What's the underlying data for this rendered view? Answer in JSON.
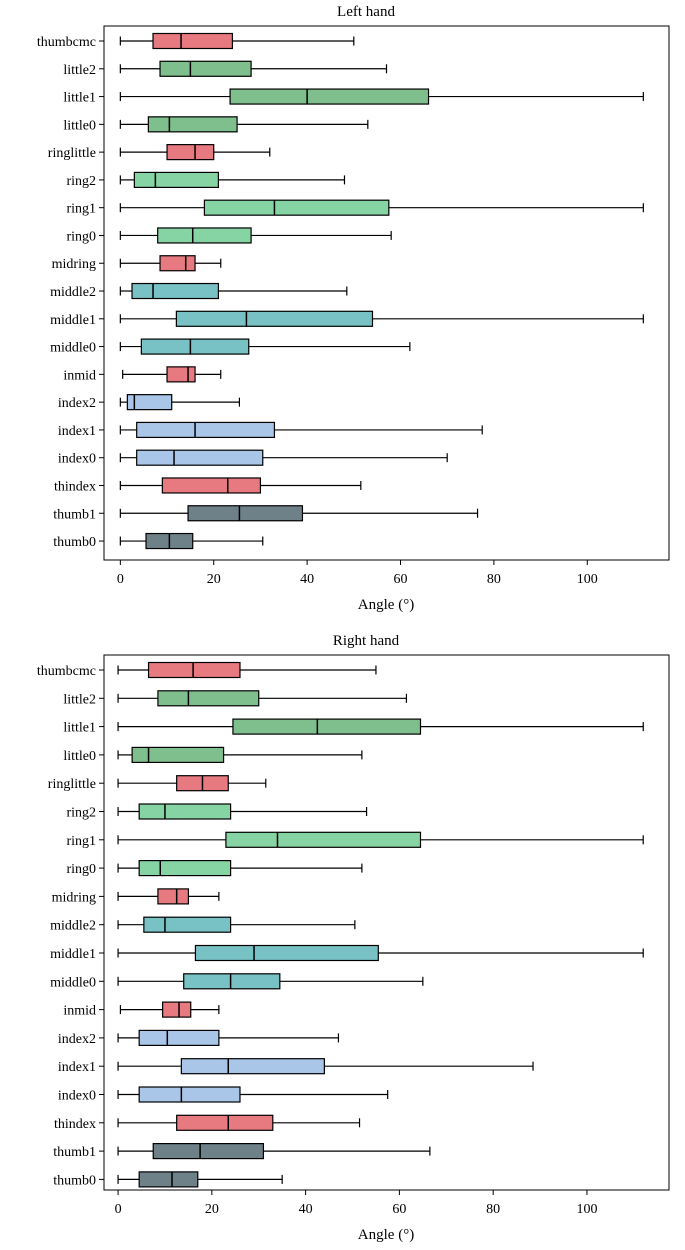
{
  "colors": {
    "thumbcmc": "#e77a80",
    "little": "#7fbf8e",
    "ringlittle": "#e77a80",
    "ring": "#86d4a4",
    "midring": "#e77a80",
    "middle": "#78c1c4",
    "inmid": "#e77a80",
    "index": "#a9c6e8",
    "thindex": "#e77a80",
    "thumb": "#6e8189"
  },
  "chart_data": [
    {
      "type": "box",
      "title": "Left hand",
      "xlabel": "Angle (°)",
      "xlim": [
        -3.5,
        117.5
      ],
      "xticks": [
        0,
        20,
        40,
        60,
        80,
        100
      ],
      "categories": [
        "thumbcmc",
        "little2",
        "little1",
        "little0",
        "ringlittle",
        "ring2",
        "ring1",
        "ring0",
        "midring",
        "middle2",
        "middle1",
        "middle0",
        "inmid",
        "index2",
        "index1",
        "index0",
        "thindex",
        "thumb1",
        "thumb0"
      ],
      "boxes": [
        {
          "label": "thumbcmc",
          "whislo": 0,
          "q1": 7,
          "med": 13,
          "q3": 24,
          "whishi": 50,
          "color_key": "thumbcmc"
        },
        {
          "label": "little2",
          "whislo": 0,
          "q1": 8.5,
          "med": 15,
          "q3": 28,
          "whishi": 57,
          "color_key": "little"
        },
        {
          "label": "little1",
          "whislo": 0,
          "q1": 23.5,
          "med": 40,
          "q3": 66,
          "whishi": 112,
          "color_key": "little"
        },
        {
          "label": "little0",
          "whislo": 0,
          "q1": 6,
          "med": 10.5,
          "q3": 25,
          "whishi": 53,
          "color_key": "little"
        },
        {
          "label": "ringlittle",
          "whislo": 0,
          "q1": 10,
          "med": 16,
          "q3": 20,
          "whishi": 32,
          "color_key": "ringlittle"
        },
        {
          "label": "ring2",
          "whislo": 0,
          "q1": 3,
          "med": 7.5,
          "q3": 21,
          "whishi": 48,
          "color_key": "ring"
        },
        {
          "label": "ring1",
          "whislo": 0,
          "q1": 18,
          "med": 33,
          "q3": 57.5,
          "whishi": 112,
          "color_key": "ring"
        },
        {
          "label": "ring0",
          "whislo": 0,
          "q1": 8,
          "med": 15.5,
          "q3": 28,
          "whishi": 58,
          "color_key": "ring"
        },
        {
          "label": "midring",
          "whislo": 0,
          "q1": 8.5,
          "med": 14,
          "q3": 16,
          "whishi": 21.5,
          "color_key": "midring"
        },
        {
          "label": "middle2",
          "whislo": 0,
          "q1": 2.5,
          "med": 7,
          "q3": 21,
          "whishi": 48.5,
          "color_key": "middle"
        },
        {
          "label": "middle1",
          "whislo": 0,
          "q1": 12,
          "med": 27,
          "q3": 54,
          "whishi": 112,
          "color_key": "middle"
        },
        {
          "label": "middle0",
          "whislo": 0,
          "q1": 4.5,
          "med": 15,
          "q3": 27.5,
          "whishi": 62,
          "color_key": "middle"
        },
        {
          "label": "inmid",
          "whislo": 0.5,
          "q1": 10,
          "med": 14.5,
          "q3": 16,
          "whishi": 21.5,
          "color_key": "inmid"
        },
        {
          "label": "index2",
          "whislo": 0,
          "q1": 1.5,
          "med": 3,
          "q3": 11,
          "whishi": 25.5,
          "color_key": "index"
        },
        {
          "label": "index1",
          "whislo": 0,
          "q1": 3.5,
          "med": 16,
          "q3": 33,
          "whishi": 77.5,
          "color_key": "index"
        },
        {
          "label": "index0",
          "whislo": 0,
          "q1": 3.5,
          "med": 11.5,
          "q3": 30.5,
          "whishi": 70,
          "color_key": "index"
        },
        {
          "label": "thindex",
          "whislo": 0,
          "q1": 9,
          "med": 23,
          "q3": 30,
          "whishi": 51.5,
          "color_key": "thindex"
        },
        {
          "label": "thumb1",
          "whislo": 0,
          "q1": 14.5,
          "med": 25.5,
          "q3": 39,
          "whishi": 76.5,
          "color_key": "thumb"
        },
        {
          "label": "thumb0",
          "whislo": 0,
          "q1": 5.5,
          "med": 10.5,
          "q3": 15.5,
          "whishi": 30.5,
          "color_key": "thumb"
        }
      ]
    },
    {
      "type": "box",
      "title": "Right hand",
      "xlabel": "Angle (°)",
      "xlim": [
        -3,
        117.5
      ],
      "xticks": [
        0,
        20,
        40,
        60,
        80,
        100
      ],
      "categories": [
        "thumbcmc",
        "little2",
        "little1",
        "little0",
        "ringlittle",
        "ring2",
        "ring1",
        "ring0",
        "midring",
        "middle2",
        "middle1",
        "middle0",
        "inmid",
        "index2",
        "index1",
        "index0",
        "thindex",
        "thumb1",
        "thumb0"
      ],
      "boxes": [
        {
          "label": "thumbcmc",
          "whislo": 0,
          "q1": 6.5,
          "med": 16,
          "q3": 26,
          "whishi": 55,
          "color_key": "thumbcmc"
        },
        {
          "label": "little2",
          "whislo": 0,
          "q1": 8.5,
          "med": 15,
          "q3": 30,
          "whishi": 61.5,
          "color_key": "little"
        },
        {
          "label": "little1",
          "whislo": 0,
          "q1": 24.5,
          "med": 42.5,
          "q3": 64.5,
          "whishi": 112,
          "color_key": "little"
        },
        {
          "label": "little0",
          "whislo": 0,
          "q1": 3,
          "med": 6.5,
          "q3": 22.5,
          "whishi": 52,
          "color_key": "little"
        },
        {
          "label": "ringlittle",
          "whislo": 0,
          "q1": 12.5,
          "med": 18,
          "q3": 23.5,
          "whishi": 31.5,
          "color_key": "ringlittle"
        },
        {
          "label": "ring2",
          "whislo": 0,
          "q1": 4.5,
          "med": 10,
          "q3": 24,
          "whishi": 53,
          "color_key": "ring"
        },
        {
          "label": "ring1",
          "whislo": 0,
          "q1": 23,
          "med": 34,
          "q3": 64.5,
          "whishi": 112,
          "color_key": "ring"
        },
        {
          "label": "ring0",
          "whislo": 0,
          "q1": 4.5,
          "med": 9,
          "q3": 24,
          "whishi": 52,
          "color_key": "ring"
        },
        {
          "label": "midring",
          "whislo": 0,
          "q1": 8.5,
          "med": 12.5,
          "q3": 15,
          "whishi": 21.5,
          "color_key": "midring"
        },
        {
          "label": "middle2",
          "whislo": 0,
          "q1": 5.5,
          "med": 10,
          "q3": 24,
          "whishi": 50.5,
          "color_key": "middle"
        },
        {
          "label": "middle1",
          "whislo": 0,
          "q1": 16.5,
          "med": 29,
          "q3": 55.5,
          "whishi": 112,
          "color_key": "middle"
        },
        {
          "label": "middle0",
          "whislo": 0,
          "q1": 14,
          "med": 24,
          "q3": 34.5,
          "whishi": 65,
          "color_key": "middle"
        },
        {
          "label": "inmid",
          "whislo": 0.5,
          "q1": 9.5,
          "med": 13,
          "q3": 15.5,
          "whishi": 21.5,
          "color_key": "inmid"
        },
        {
          "label": "index2",
          "whislo": 0,
          "q1": 4.5,
          "med": 10.5,
          "q3": 21.5,
          "whishi": 47,
          "color_key": "index"
        },
        {
          "label": "index1",
          "whislo": 0,
          "q1": 13.5,
          "med": 23.5,
          "q3": 44,
          "whishi": 88.5,
          "color_key": "index"
        },
        {
          "label": "index0",
          "whislo": 0,
          "q1": 4.5,
          "med": 13.5,
          "q3": 26,
          "whishi": 57.5,
          "color_key": "index"
        },
        {
          "label": "thindex",
          "whislo": 0,
          "q1": 12.5,
          "med": 23.5,
          "q3": 33,
          "whishi": 51.5,
          "color_key": "thindex"
        },
        {
          "label": "thumb1",
          "whislo": 0,
          "q1": 7.5,
          "med": 17.5,
          "q3": 31,
          "whishi": 66.5,
          "color_key": "thumb"
        },
        {
          "label": "thumb0",
          "whislo": 0,
          "q1": 4.5,
          "med": 11.5,
          "q3": 17,
          "whishi": 35,
          "color_key": "thumb"
        }
      ]
    }
  ]
}
